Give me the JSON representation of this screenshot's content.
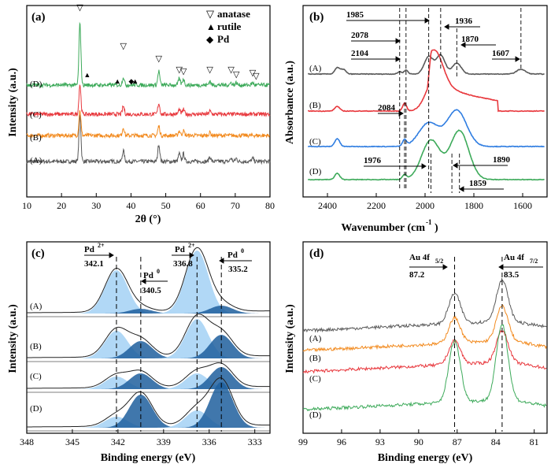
{
  "figure": {
    "panels": [
      {
        "id": "a",
        "label": "(a)",
        "xlabel": "2θ (°)",
        "ylabel": "Intensity (a.u.)",
        "xlim": [
          10,
          80
        ],
        "xticks": [
          "10",
          "20",
          "30",
          "40",
          "50",
          "60",
          "70",
          "80"
        ],
        "series_labels": [
          "(A)",
          "(B)",
          "(C)",
          "(D)"
        ],
        "legend": [
          {
            "symbol": "▽",
            "label": "anatase"
          },
          {
            "symbol": "▲",
            "label": "rutile"
          },
          {
            "symbol": "◆",
            "label": "Pd"
          }
        ],
        "markers": {
          "anatase": [
            25.3,
            37.8,
            48.0,
            53.9,
            55.1,
            62.7,
            68.8,
            70.3,
            75.0,
            76.0
          ],
          "rutile": [
            27.4,
            36.1,
            41.2
          ],
          "pd": [
            40.1
          ]
        }
      },
      {
        "id": "b",
        "label": "(b)",
        "xlabel": "Wavenumber (cm",
        "xlabel_sup": "-1",
        "xlabel_close": ")",
        "ylabel": "Absorbance (a.u.)",
        "xlim": [
          2500,
          1500
        ],
        "xticks": [
          "2400",
          "2200",
          "2000",
          "1800",
          "1600"
        ],
        "series_labels": [
          "(A)",
          "(B)",
          "(C)",
          "(D)"
        ],
        "annotations": [
          "1985",
          "2078",
          "2104",
          "1936",
          "1870",
          "1607",
          "2084",
          "1976",
          "1890",
          "1859"
        ]
      },
      {
        "id": "c",
        "label": "(c)",
        "xlabel": "Binding energy (eV)",
        "ylabel": "Intensity (a.u.)",
        "xlim": [
          348,
          332
        ],
        "xticks": [
          "348",
          "345",
          "342",
          "339",
          "336",
          "333"
        ],
        "series_labels": [
          "(A)",
          "(B)",
          "(C)",
          "(D)"
        ],
        "peak_labels": [
          {
            "name": "Pd",
            "sup": "2+",
            "value": "342.1"
          },
          {
            "name": "Pd",
            "sup": "0",
            "value": "340.5"
          },
          {
            "name": "Pd",
            "sup": "2+",
            "value": "336.8"
          },
          {
            "name": "Pd",
            "sup": "0",
            "value": "335.2"
          }
        ]
      },
      {
        "id": "d",
        "label": "(d)",
        "xlabel": "Binding energy (eV)",
        "ylabel": "Intensity (a.u.)",
        "xlim": [
          99,
          80
        ],
        "xticks": [
          "99",
          "96",
          "93",
          "90",
          "87",
          "84",
          "81"
        ],
        "series_labels": [
          "(A)",
          "(B)",
          "(C)",
          "(D)"
        ],
        "peak_labels": [
          {
            "name": "Au 4f",
            "sub": "5/2",
            "value": "87.2"
          },
          {
            "name": "Au 4f",
            "sub": "7/2",
            "value": "83.5"
          }
        ]
      }
    ],
    "colors": {
      "A": "#595959",
      "B": "#f28a1e",
      "C": "#e8383d",
      "D": "#3daa5a",
      "ir_B": "#e8383d",
      "ir_C": "#2f7de1",
      "ir_D": "#3daa5a",
      "xps_fill_light": "#a9d4f5",
      "xps_fill_mid": "#5aaee8",
      "xps_fill_dark": "#1f5f9e"
    }
  },
  "chart_data": [
    {
      "panel": "a",
      "type": "line",
      "title": "(a)",
      "xlabel": "2θ (°)",
      "ylabel": "Intensity (a.u.)",
      "xlim": [
        10,
        80
      ],
      "grid": false,
      "series": [
        {
          "name": "(A)",
          "peaks": [
            [
              25.3,
              60
            ],
            [
              37.8,
              14
            ],
            [
              48.0,
              22
            ],
            [
              53.9,
              10
            ],
            [
              55.1,
              10
            ],
            [
              62.7,
              6
            ],
            [
              68.8,
              4
            ],
            [
              70.3,
              4
            ],
            [
              75.0,
              4
            ]
          ]
        },
        {
          "name": "(B)",
          "peaks": [
            [
              25.3,
              32
            ],
            [
              37.8,
              10
            ],
            [
              48.0,
              12
            ],
            [
              53.9,
              6
            ],
            [
              55.1,
              6
            ],
            [
              62.7,
              4
            ]
          ]
        },
        {
          "name": "(C)",
          "peaks": [
            [
              25.3,
              38
            ],
            [
              37.8,
              10
            ],
            [
              48.0,
              14
            ],
            [
              53.9,
              6
            ],
            [
              55.1,
              6
            ],
            [
              62.7,
              4
            ]
          ]
        },
        {
          "name": "(D)",
          "peaks": [
            [
              25.3,
              78
            ],
            [
              37.8,
              10
            ],
            [
              48.0,
              18
            ],
            [
              53.9,
              8
            ],
            [
              55.1,
              8
            ],
            [
              62.7,
              5
            ],
            [
              68.8,
              3
            ],
            [
              70.3,
              3
            ],
            [
              75.0,
              3
            ]
          ]
        }
      ]
    },
    {
      "panel": "b",
      "type": "line",
      "title": "(b)",
      "xlabel": "Wavenumber (cm-1)",
      "ylabel": "Absorbance (a.u.)",
      "xlim": [
        2500,
        1500
      ],
      "series": [
        {
          "name": "(A)",
          "peaks": [
            [
              2360,
              8
            ],
            [
              2335,
              6
            ],
            [
              2104,
              3
            ],
            [
              2078,
              5
            ],
            [
              1985,
              22
            ],
            [
              1936,
              24
            ],
            [
              1870,
              14
            ],
            [
              1607,
              6
            ]
          ]
        },
        {
          "name": "(B)",
          "peaks": [
            [
              2360,
              6
            ],
            [
              2084,
              10
            ],
            [
              1960,
              42
            ]
          ]
        },
        {
          "name": "(C)",
          "peaks": [
            [
              2360,
              10
            ],
            [
              2084,
              8
            ],
            [
              1985,
              30
            ],
            [
              1870,
              46
            ]
          ]
        },
        {
          "name": "(D)",
          "peaks": [
            [
              2360,
              8
            ],
            [
              2084,
              6
            ],
            [
              1976,
              50
            ],
            [
              1859,
              62
            ]
          ]
        }
      ]
    },
    {
      "panel": "c",
      "type": "area",
      "title": "(c)",
      "xlabel": "Binding energy (eV)",
      "ylabel": "Intensity (a.u.)",
      "xlim": [
        348,
        332
      ],
      "reference_lines": [
        342.1,
        340.5,
        336.8,
        335.2
      ],
      "series": [
        {
          "name": "(A)",
          "components": [
            [
              342.1,
              55
            ],
            [
              340.5,
              6
            ],
            [
              336.8,
              80
            ],
            [
              335.2,
              10
            ]
          ]
        },
        {
          "name": "(B)",
          "components": [
            [
              342.1,
              35
            ],
            [
              340.5,
              22
            ],
            [
              336.8,
              50
            ],
            [
              335.2,
              30
            ]
          ]
        },
        {
          "name": "(C)",
          "components": [
            [
              342.1,
              16
            ],
            [
              340.5,
              20
            ],
            [
              336.8,
              20
            ],
            [
              335.2,
              28
            ]
          ]
        },
        {
          "name": "(D)",
          "components": [
            [
              342.1,
              14
            ],
            [
              340.5,
              42
            ],
            [
              336.8,
              22
            ],
            [
              335.2,
              58
            ]
          ]
        }
      ]
    },
    {
      "panel": "d",
      "type": "line",
      "title": "(d)",
      "xlabel": "Binding energy (eV)",
      "ylabel": "Intensity (a.u.)",
      "xlim": [
        99,
        80
      ],
      "reference_lines": [
        87.2,
        83.5
      ],
      "series": [
        {
          "name": "(A)",
          "peaks": [
            [
              87.2,
              38
            ],
            [
              83.5,
              52
            ]
          ]
        },
        {
          "name": "(B)",
          "peaks": [
            [
              87.2,
              32
            ],
            [
              83.5,
              44
            ]
          ]
        },
        {
          "name": "(C)",
          "peaks": [
            [
              87.2,
              30
            ],
            [
              83.5,
              40
            ]
          ]
        },
        {
          "name": "(D)",
          "peaks": [
            [
              87.2,
              78
            ],
            [
              83.5,
              96
            ]
          ]
        }
      ]
    }
  ]
}
